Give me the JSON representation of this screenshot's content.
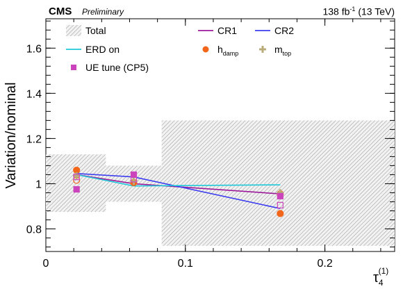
{
  "header": {
    "experiment": "CMS",
    "status": "Preliminary",
    "lumi_value": "138 fb",
    "lumi_exp": "-1",
    "lumi_energy": "(13 TeV)"
  },
  "chart_data": {
    "type": "line",
    "title": "",
    "xlabel": "τ",
    "xlabel_sub": "4",
    "xlabel_sup": "(1)",
    "ylabel": "Variation/nominal",
    "xlim": [
      0,
      0.25
    ],
    "ylim": [
      0.7,
      1.73
    ],
    "xticks": [
      0,
      0.1,
      0.2
    ],
    "xtick_labels": [
      "0",
      "0.1",
      "0.2"
    ],
    "yticks": [
      0.8,
      1.0,
      1.2,
      1.4,
      1.6
    ],
    "ytick_labels": [
      "0.8",
      "1",
      "1.2",
      "1.4",
      "1.6"
    ],
    "bin_edges": [
      0,
      0.043,
      0.083,
      0.25
    ],
    "bin_centers": [
      0.022,
      0.063,
      0.168
    ],
    "total_band": [
      {
        "x0": 0,
        "x1": 0.043,
        "low": 0.875,
        "high": 1.13
      },
      {
        "x0": 0.043,
        "x1": 0.083,
        "low": 0.92,
        "high": 1.08
      },
      {
        "x0": 0.083,
        "x1": 0.25,
        "low": 0.725,
        "high": 1.28
      }
    ],
    "series": [
      {
        "name": "CR1",
        "kind": "line",
        "color": "#9b1a9b",
        "values": [
          1.04,
          1.0,
          0.955
        ]
      },
      {
        "name": "CR2",
        "kind": "line",
        "color": "#3d3df0",
        "values": [
          1.045,
          1.03,
          0.89
        ]
      },
      {
        "name": "ERD on",
        "kind": "line",
        "color": "#1fc8d8",
        "values": [
          1.04,
          0.99,
          0.995
        ]
      },
      {
        "name": "h_damp",
        "kind": "marker",
        "marker": "circle",
        "color": "#f2661c",
        "values": [
          1.06,
          1.005,
          0.868
        ],
        "down_values": [
          1.015,
          1.005,
          0.955
        ]
      },
      {
        "name": "m_top",
        "kind": "marker",
        "marker": "cross",
        "color": "#b9ac7a",
        "values": [
          1.035,
          1.01,
          0.96
        ]
      },
      {
        "name": "UE tune (CP5)",
        "kind": "marker",
        "marker": "square",
        "color": "#cc44bb",
        "values": [
          0.975,
          1.04,
          0.945
        ],
        "down_values": [
          1.03,
          1.02,
          0.905
        ]
      }
    ],
    "legend": {
      "placement": "top",
      "entries": [
        {
          "label": "Total",
          "label_sub": "",
          "symbol": "band"
        },
        {
          "label": "ERD on",
          "label_sub": "",
          "symbol": "line",
          "color": "#1fc8d8"
        },
        {
          "label": "UE tune (CP5)",
          "label_sub": "",
          "symbol": "square",
          "color": "#cc44bb"
        },
        {
          "label": "CR1",
          "label_sub": "",
          "symbol": "line",
          "color": "#9b1a9b"
        },
        {
          "label": "h",
          "label_sub": "damp",
          "symbol": "circle",
          "color": "#f2661c"
        },
        {
          "label": "CR2",
          "label_sub": "",
          "symbol": "line",
          "color": "#3d3df0"
        },
        {
          "label": "m",
          "label_sub": "top",
          "symbol": "cross",
          "color": "#b9ac7a"
        }
      ]
    },
    "grid": false
  }
}
